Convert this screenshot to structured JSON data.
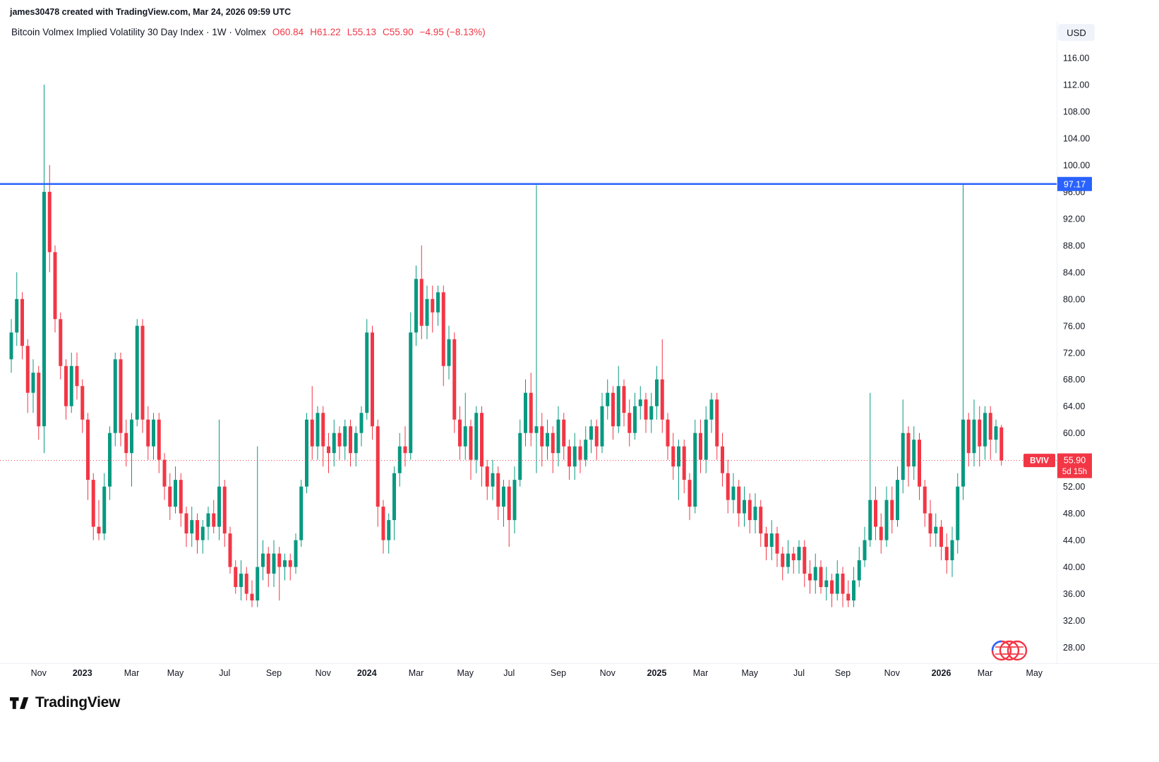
{
  "header": {
    "creator_note": "james30478 created with TradingView.com, Mar 24, 2026 09:59 UTC",
    "currency_button": "USD"
  },
  "legend": {
    "title": "Bitcoin Volmex Implied Volatility 30 Day Index · 1W · Volmex",
    "values": [
      "O60.84",
      "H61.22",
      "L55.13",
      "C55.90",
      "−4.95 (−8.13%)"
    ]
  },
  "price_scale": {
    "ticks": [
      "116.00",
      "112.00",
      "108.00",
      "104.00",
      "100.00",
      "96.00",
      "92.00",
      "88.00",
      "84.00",
      "80.00",
      "76.00",
      "72.00",
      "68.00",
      "64.00",
      "60.00",
      "56.00",
      "52.00",
      "48.00",
      "44.00",
      "40.00",
      "36.00",
      "32.00",
      "28.00"
    ]
  },
  "time_scale": {
    "labels": [
      {
        "text": "Nov",
        "index": 5,
        "bold": false
      },
      {
        "text": "2023",
        "index": 13,
        "bold": true
      },
      {
        "text": "Mar",
        "index": 22,
        "bold": false
      },
      {
        "text": "May",
        "index": 30,
        "bold": false
      },
      {
        "text": "Jul",
        "index": 39,
        "bold": false
      },
      {
        "text": "Sep",
        "index": 48,
        "bold": false
      },
      {
        "text": "Nov",
        "index": 57,
        "bold": false
      },
      {
        "text": "2024",
        "index": 65,
        "bold": true
      },
      {
        "text": "Mar",
        "index": 74,
        "bold": false
      },
      {
        "text": "May",
        "index": 83,
        "bold": false
      },
      {
        "text": "Jul",
        "index": 91,
        "bold": false
      },
      {
        "text": "Sep",
        "index": 100,
        "bold": false
      },
      {
        "text": "Nov",
        "index": 109,
        "bold": false
      },
      {
        "text": "2025",
        "index": 118,
        "bold": true
      },
      {
        "text": "Mar",
        "index": 126,
        "bold": false
      },
      {
        "text": "May",
        "index": 135,
        "bold": false
      },
      {
        "text": "Jul",
        "index": 144,
        "bold": false
      },
      {
        "text": "Sep",
        "index": 152,
        "bold": false
      },
      {
        "text": "Nov",
        "index": 161,
        "bold": false
      },
      {
        "text": "2026",
        "index": 170,
        "bold": true
      },
      {
        "text": "Mar",
        "index": 178,
        "bold": false
      },
      {
        "text": "May",
        "index": 187,
        "bold": false
      }
    ]
  },
  "lines": {
    "horizontal_line": {
      "price": 97.17,
      "label": "97.17",
      "color": "#2962FF"
    },
    "last_price": {
      "symbol": "BVIV",
      "price": "55.90",
      "countdown": "5d 15h",
      "color": "#F23645"
    }
  },
  "footer": {
    "logo_text": "TradingView"
  },
  "chart_data": {
    "type": "candlestick",
    "title": "Bitcoin Volmex Implied Volatility 30 Day Index",
    "interval": "1W",
    "source": "Volmex",
    "currency": "USD",
    "up_color": "#089981",
    "down_color": "#F23645",
    "ylim": [
      28,
      116
    ],
    "columns": [
      "week",
      "open",
      "high",
      "low",
      "close"
    ],
    "candles": [
      [
        "2022-10-03",
        71,
        77,
        69,
        75
      ],
      [
        "2022-10-10",
        75,
        84,
        73,
        80
      ],
      [
        "2022-10-17",
        80,
        81,
        71,
        73
      ],
      [
        "2022-10-24",
        73,
        74,
        63,
        66
      ],
      [
        "2022-10-31",
        66,
        71,
        63,
        69
      ],
      [
        "2022-11-07",
        69,
        70,
        59,
        61
      ],
      [
        "2022-11-14",
        61,
        112,
        57,
        96
      ],
      [
        "2022-11-21",
        96,
        100,
        84,
        87
      ],
      [
        "2022-11-28",
        87,
        88,
        75,
        77
      ],
      [
        "2022-12-05",
        77,
        78,
        68,
        70
      ],
      [
        "2022-12-12",
        70,
        71,
        62,
        64
      ],
      [
        "2022-12-19",
        64,
        72,
        63,
        70
      ],
      [
        "2022-12-26",
        70,
        72,
        65,
        67
      ],
      [
        "2023-01-02",
        67,
        68,
        60,
        62
      ],
      [
        "2023-01-09",
        62,
        63,
        50,
        53
      ],
      [
        "2023-01-16",
        53,
        54,
        44,
        46
      ],
      [
        "2023-01-23",
        46,
        50,
        44,
        45
      ],
      [
        "2023-01-30",
        45,
        54,
        44,
        52
      ],
      [
        "2023-02-06",
        52,
        61,
        50,
        60
      ],
      [
        "2023-02-13",
        60,
        72,
        58,
        71
      ],
      [
        "2023-02-20",
        71,
        72,
        58,
        60
      ],
      [
        "2023-02-27",
        60,
        62,
        55,
        57
      ],
      [
        "2023-03-06",
        57,
        63,
        52,
        62
      ],
      [
        "2023-03-13",
        62,
        77,
        61,
        76
      ],
      [
        "2023-03-20",
        76,
        77,
        60,
        62
      ],
      [
        "2023-03-27",
        62,
        64,
        56,
        58
      ],
      [
        "2023-04-03",
        58,
        63,
        56,
        62
      ],
      [
        "2023-04-10",
        62,
        63,
        54,
        56
      ],
      [
        "2023-04-17",
        56,
        57,
        50,
        52
      ],
      [
        "2023-04-24",
        52,
        54,
        47,
        49
      ],
      [
        "2023-05-01",
        49,
        55,
        48,
        53
      ],
      [
        "2023-05-08",
        53,
        54,
        46,
        48
      ],
      [
        "2023-05-15",
        48,
        49,
        43,
        45
      ],
      [
        "2023-05-22",
        45,
        49,
        43,
        47
      ],
      [
        "2023-05-29",
        47,
        48,
        42,
        44
      ],
      [
        "2023-06-05",
        44,
        47,
        42,
        46
      ],
      [
        "2023-06-12",
        46,
        49,
        44,
        48
      ],
      [
        "2023-06-19",
        48,
        50,
        45,
        46
      ],
      [
        "2023-06-26",
        46,
        62,
        44,
        52
      ],
      [
        "2023-07-03",
        52,
        53,
        43,
        45
      ],
      [
        "2023-07-10",
        45,
        46,
        39,
        40
      ],
      [
        "2023-07-17",
        40,
        41,
        36,
        37
      ],
      [
        "2023-07-24",
        37,
        41,
        35,
        39
      ],
      [
        "2023-07-31",
        39,
        40,
        35,
        36
      ],
      [
        "2023-08-07",
        36,
        38,
        34,
        35
      ],
      [
        "2023-08-14",
        35,
        58,
        34,
        40
      ],
      [
        "2023-08-21",
        40,
        44,
        38,
        42
      ],
      [
        "2023-08-28",
        42,
        43,
        37,
        39
      ],
      [
        "2023-09-04",
        39,
        44,
        37,
        42
      ],
      [
        "2023-09-11",
        42,
        43,
        35,
        40
      ],
      [
        "2023-09-18",
        40,
        42,
        38,
        41
      ],
      [
        "2023-09-25",
        41,
        42,
        38,
        40
      ],
      [
        "2023-10-02",
        40,
        45,
        39,
        44
      ],
      [
        "2023-10-09",
        44,
        53,
        43,
        52
      ],
      [
        "2023-10-16",
        52,
        63,
        51,
        62
      ],
      [
        "2023-10-23",
        62,
        67,
        56,
        58
      ],
      [
        "2023-10-30",
        58,
        64,
        56,
        63
      ],
      [
        "2023-11-06",
        63,
        64,
        55,
        58
      ],
      [
        "2023-11-13",
        58,
        60,
        54,
        57
      ],
      [
        "2023-11-20",
        57,
        62,
        55,
        60
      ],
      [
        "2023-11-27",
        60,
        61,
        56,
        58
      ],
      [
        "2023-12-04",
        58,
        62,
        56,
        61
      ],
      [
        "2023-12-11",
        61,
        62,
        55,
        57
      ],
      [
        "2023-12-18",
        57,
        61,
        55,
        60
      ],
      [
        "2023-12-25",
        60,
        64,
        58,
        63
      ],
      [
        "2024-01-01",
        63,
        77,
        62,
        75
      ],
      [
        "2024-01-08",
        75,
        76,
        59,
        61
      ],
      [
        "2024-01-15",
        61,
        62,
        46,
        49
      ],
      [
        "2024-01-22",
        49,
        50,
        42,
        44
      ],
      [
        "2024-01-29",
        44,
        48,
        42,
        47
      ],
      [
        "2024-02-05",
        47,
        55,
        44,
        54
      ],
      [
        "2024-02-12",
        54,
        60,
        52,
        58
      ],
      [
        "2024-02-19",
        58,
        61,
        55,
        57
      ],
      [
        "2024-02-26",
        57,
        78,
        56,
        75
      ],
      [
        "2024-03-04",
        75,
        85,
        73,
        83
      ],
      [
        "2024-03-11",
        83,
        88,
        74,
        76
      ],
      [
        "2024-03-18",
        76,
        82,
        74,
        80
      ],
      [
        "2024-03-25",
        80,
        82,
        75,
        78
      ],
      [
        "2024-04-01",
        78,
        82,
        76,
        81
      ],
      [
        "2024-04-08",
        81,
        82,
        67,
        70
      ],
      [
        "2024-04-15",
        70,
        76,
        68,
        74
      ],
      [
        "2024-04-22",
        74,
        75,
        60,
        62
      ],
      [
        "2024-04-29",
        62,
        64,
        56,
        58
      ],
      [
        "2024-05-06",
        58,
        66,
        56,
        61
      ],
      [
        "2024-05-13",
        61,
        62,
        53,
        56
      ],
      [
        "2024-05-20",
        56,
        64,
        54,
        63
      ],
      [
        "2024-05-27",
        63,
        64,
        52,
        55
      ],
      [
        "2024-06-03",
        55,
        56,
        50,
        52
      ],
      [
        "2024-06-10",
        52,
        56,
        50,
        54
      ],
      [
        "2024-06-17",
        54,
        55,
        47,
        49
      ],
      [
        "2024-06-24",
        49,
        53,
        46,
        52
      ],
      [
        "2024-07-01",
        52,
        53,
        43,
        47
      ],
      [
        "2024-07-08",
        47,
        55,
        45,
        53
      ],
      [
        "2024-07-15",
        53,
        62,
        52,
        60
      ],
      [
        "2024-07-22",
        60,
        68,
        58,
        66
      ],
      [
        "2024-07-29",
        66,
        69,
        58,
        60
      ],
      [
        "2024-08-05",
        60,
        97,
        54,
        61
      ],
      [
        "2024-08-12",
        61,
        63,
        55,
        58
      ],
      [
        "2024-08-19",
        58,
        62,
        56,
        60
      ],
      [
        "2024-08-26",
        60,
        61,
        54,
        57
      ],
      [
        "2024-09-02",
        57,
        64,
        55,
        62
      ],
      [
        "2024-09-09",
        62,
        63,
        56,
        58
      ],
      [
        "2024-09-16",
        58,
        59,
        53,
        55
      ],
      [
        "2024-09-23",
        55,
        60,
        53,
        58
      ],
      [
        "2024-09-30",
        58,
        59,
        54,
        56
      ],
      [
        "2024-10-07",
        56,
        61,
        55,
        59
      ],
      [
        "2024-10-14",
        59,
        62,
        57,
        61
      ],
      [
        "2024-10-21",
        61,
        62,
        56,
        58
      ],
      [
        "2024-10-28",
        58,
        66,
        57,
        64
      ],
      [
        "2024-11-04",
        64,
        68,
        62,
        66
      ],
      [
        "2024-11-11",
        66,
        67,
        59,
        61
      ],
      [
        "2024-11-18",
        61,
        70,
        60,
        67
      ],
      [
        "2024-11-25",
        67,
        68,
        61,
        63
      ],
      [
        "2024-12-02",
        63,
        65,
        58,
        60
      ],
      [
        "2024-12-09",
        60,
        66,
        59,
        64
      ],
      [
        "2024-12-16",
        64,
        67,
        62,
        65
      ],
      [
        "2024-12-23",
        65,
        66,
        60,
        62
      ],
      [
        "2024-12-30",
        62,
        66,
        60,
        64
      ],
      [
        "2025-01-06",
        64,
        70,
        62,
        68
      ],
      [
        "2025-01-13",
        68,
        74,
        60,
        62
      ],
      [
        "2025-01-20",
        62,
        63,
        56,
        58
      ],
      [
        "2025-01-27",
        58,
        60,
        53,
        55
      ],
      [
        "2025-02-03",
        55,
        59,
        50,
        58
      ],
      [
        "2025-02-10",
        58,
        59,
        51,
        53
      ],
      [
        "2025-02-17",
        53,
        54,
        47,
        49
      ],
      [
        "2025-02-24",
        49,
        62,
        48,
        60
      ],
      [
        "2025-03-03",
        60,
        62,
        54,
        56
      ],
      [
        "2025-03-10",
        56,
        64,
        54,
        62
      ],
      [
        "2025-03-17",
        62,
        66,
        60,
        65
      ],
      [
        "2025-03-24",
        65,
        66,
        56,
        58
      ],
      [
        "2025-03-31",
        58,
        60,
        52,
        54
      ],
      [
        "2025-04-07",
        54,
        56,
        48,
        50
      ],
      [
        "2025-04-14",
        50,
        54,
        48,
        52
      ],
      [
        "2025-04-21",
        52,
        53,
        46,
        48
      ],
      [
        "2025-04-28",
        48,
        52,
        46,
        50
      ],
      [
        "2025-05-05",
        50,
        51,
        45,
        47
      ],
      [
        "2025-05-12",
        47,
        51,
        45,
        49
      ],
      [
        "2025-05-19",
        49,
        50,
        43,
        45
      ],
      [
        "2025-05-26",
        45,
        46,
        41,
        43
      ],
      [
        "2025-06-02",
        43,
        47,
        41,
        45
      ],
      [
        "2025-06-09",
        45,
        46,
        40,
        42
      ],
      [
        "2025-06-16",
        42,
        43,
        38,
        40
      ],
      [
        "2025-06-23",
        40,
        44,
        39,
        42
      ],
      [
        "2025-06-30",
        42,
        43,
        39,
        41
      ],
      [
        "2025-07-07",
        41,
        44,
        39,
        43
      ],
      [
        "2025-07-14",
        43,
        44,
        37,
        39
      ],
      [
        "2025-07-21",
        39,
        41,
        36,
        38
      ],
      [
        "2025-07-28",
        38,
        42,
        36,
        40
      ],
      [
        "2025-08-04",
        40,
        41,
        36,
        37
      ],
      [
        "2025-08-11",
        37,
        40,
        35,
        38
      ],
      [
        "2025-08-18",
        38,
        39,
        34,
        36
      ],
      [
        "2025-08-25",
        36,
        41,
        35,
        39
      ],
      [
        "2025-09-01",
        39,
        40,
        34,
        36
      ],
      [
        "2025-09-08",
        36,
        38,
        34,
        35
      ],
      [
        "2025-09-15",
        35,
        40,
        34,
        38
      ],
      [
        "2025-09-22",
        38,
        43,
        37,
        41
      ],
      [
        "2025-09-29",
        41,
        46,
        40,
        44
      ],
      [
        "2025-10-06",
        44,
        66,
        43,
        50
      ],
      [
        "2025-10-13",
        50,
        52,
        44,
        46
      ],
      [
        "2025-10-20",
        46,
        48,
        42,
        44
      ],
      [
        "2025-10-27",
        44,
        52,
        43,
        50
      ],
      [
        "2025-11-03",
        50,
        52,
        45,
        47
      ],
      [
        "2025-11-10",
        47,
        55,
        46,
        53
      ],
      [
        "2025-11-17",
        53,
        65,
        51,
        60
      ],
      [
        "2025-11-24",
        60,
        61,
        52,
        55
      ],
      [
        "2025-12-01",
        55,
        61,
        53,
        59
      ],
      [
        "2025-12-08",
        59,
        60,
        50,
        52
      ],
      [
        "2025-12-15",
        52,
        53,
        46,
        48
      ],
      [
        "2025-12-22",
        48,
        50,
        43,
        45
      ],
      [
        "2025-12-29",
        45,
        48,
        43,
        46
      ],
      [
        "2026-01-05",
        46,
        47,
        41,
        43
      ],
      [
        "2026-01-12",
        43,
        45,
        39,
        41
      ],
      [
        "2026-01-19",
        41,
        46,
        38.5,
        44
      ],
      [
        "2026-01-26",
        44,
        54,
        42,
        52
      ],
      [
        "2026-02-02",
        52,
        97.17,
        50,
        62
      ],
      [
        "2026-02-09",
        62,
        63,
        55,
        57
      ],
      [
        "2026-02-16",
        57,
        65,
        55,
        62
      ],
      [
        "2026-02-23",
        62,
        64,
        55,
        58
      ],
      [
        "2026-03-02",
        58,
        64,
        56,
        63
      ],
      [
        "2026-03-09",
        63,
        64,
        56,
        59
      ],
      [
        "2026-03-16",
        59,
        62,
        57,
        61
      ],
      [
        "2026-03-23",
        60.84,
        61.22,
        55.13,
        55.9
      ]
    ]
  }
}
